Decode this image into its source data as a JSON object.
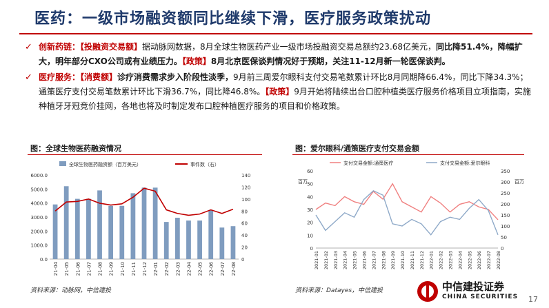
{
  "header": {
    "title": "医药：一级市场融资额同比继续下滑，医疗服务政策扰动"
  },
  "bullets": [
    {
      "lead": "创新药链：",
      "tag": "【投融资交易额】",
      "text1": "据动脉网数据，8月全球生物医药产业一级市场投融资交易总额约23.68亿美元，",
      "bold1": "同比降51.4%，降幅扩大，明年部分CXO公司或有业绩压力。",
      "tag2": "【政策】",
      "bold2": "8月北京医保谈判情况好于预期，关注11-12月新一轮医保谈判。"
    },
    {
      "lead": "医疗服务：",
      "tag": "【消费额】",
      "bold0": "诊疗消费需求步入阶段性淡季，",
      "text1": "9月前三周爱尔眼科支付交易笔数累计环比8月同期降66.4%，同比下降34.3%；通策医疗支付交易笔数累计环比下滑36.7%，同比降46.8%。",
      "tag2": "【政策】",
      "text2": "9月开始将陆续出台口腔种植类医疗服务价格项目立项指南，实施种植牙牙冠竞价挂网，各地也将及时制定发布口腔种植医疗服务的项目和价格政策。"
    }
  ],
  "left_chart": {
    "caption": "图：全球生物医药融资情况",
    "source": "资料来源：动脉网，中信建投"
  },
  "right_chart": {
    "caption": "图：爱尔眼科/通策医疗支付交易金额",
    "source": "资料来源：Datayes，中信建投"
  },
  "footer": {
    "logo_cn": "中信建投证券",
    "logo_en": "CHINA SECURITIES",
    "page": "17"
  },
  "colors": {
    "title": "#1f3a6b",
    "accent": "#c00000",
    "bar": "#7f9cbf",
    "line": "#c00000",
    "series_a": "#f08080",
    "series_b": "#8ea9c8"
  },
  "chart_data": [
    {
      "type": "bar",
      "title": "",
      "categories": [
        "21-04",
        "21-05",
        "21-06",
        "21-07",
        "21-08",
        "21-09",
        "21-10",
        "21-11",
        "21-12",
        "22-01",
        "22-02",
        "22-03",
        "22-04",
        "22-05",
        "22-06",
        "22-07",
        "22-08"
      ],
      "series": [
        {
          "name": "全球生物医药融资额（百万美元）",
          "kind": "bar",
          "axis": "left",
          "values": [
            3900,
            5200,
            4300,
            4300,
            4900,
            3800,
            3800,
            4700,
            5100,
            5100,
            2650,
            2950,
            2750,
            2750,
            3500,
            2250,
            2350
          ]
        },
        {
          "name": "事件数（右）",
          "kind": "line",
          "axis": "right",
          "values": [
            80,
            95,
            96,
            100,
            93,
            90,
            92,
            103,
            118,
            113,
            82,
            76,
            73,
            75,
            82,
            76,
            83
          ]
        }
      ],
      "left_axis": {
        "ylim": [
          0,
          6000
        ],
        "ticks": [
          "0.0",
          "1000.0",
          "2000.0",
          "3000.0",
          "4000.0",
          "5000.0",
          "6000.0"
        ]
      },
      "right_axis": {
        "ylim": [
          0,
          140
        ],
        "ticks": [
          "0",
          "20",
          "40",
          "60",
          "80",
          "100",
          "120",
          "140"
        ]
      }
    },
    {
      "type": "line",
      "title": "",
      "ylabel_left": "百万",
      "ylabel_right": "百万",
      "categories": [
        "2021-01",
        "2021-02",
        "2021-03",
        "2021-04",
        "2021-05",
        "2021-06",
        "2021-07",
        "2021-08",
        "2021-09",
        "2021-10",
        "2021-11",
        "2021-12",
        "2022-01",
        "2022-02",
        "2022-03",
        "2022-04",
        "2022-05",
        "2022-06",
        "2022-07",
        "2022-08"
      ],
      "series": [
        {
          "name": "支付交易金额:通策医疗",
          "axis": "left",
          "values": [
            30,
            35,
            33,
            40,
            36,
            34,
            44,
            38,
            50,
            36,
            32,
            28,
            40,
            35,
            28,
            34,
            36,
            32,
            30,
            22
          ]
        },
        {
          "name": "支付交易金额:爱尔眼科",
          "axis": "right",
          "values": [
            150,
            80,
            120,
            160,
            140,
            220,
            260,
            240,
            110,
            100,
            130,
            110,
            60,
            120,
            140,
            130,
            180,
            220,
            170,
            60
          ]
        }
      ],
      "left_axis": {
        "ylim": [
          0,
          60
        ],
        "ticks": [
          "0",
          "10",
          "20",
          "30",
          "40",
          "50",
          "60"
        ]
      },
      "right_axis": {
        "ylim": [
          0,
          350
        ],
        "ticks": [
          "0",
          "50",
          "100",
          "150",
          "200",
          "250",
          "300",
          "350"
        ]
      }
    }
  ]
}
